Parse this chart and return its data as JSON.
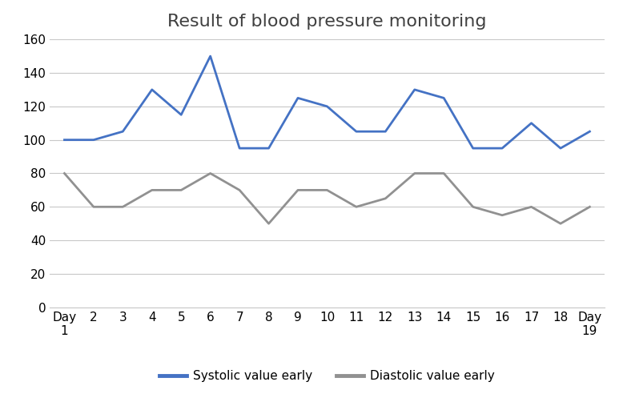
{
  "title": "Result of blood pressure monitoring",
  "x_labels": [
    "Day\n1",
    "2",
    "3",
    "4",
    "5",
    "6",
    "7",
    "8",
    "9",
    "10",
    "11",
    "12",
    "13",
    "14",
    "15",
    "16",
    "17",
    "18",
    "Day\n19"
  ],
  "x_positions": [
    1,
    2,
    3,
    4,
    5,
    6,
    7,
    8,
    9,
    10,
    11,
    12,
    13,
    14,
    15,
    16,
    17,
    18,
    19
  ],
  "systolic": [
    100,
    100,
    105,
    130,
    115,
    150,
    95,
    95,
    125,
    120,
    105,
    105,
    130,
    125,
    95,
    95,
    110,
    95,
    105
  ],
  "diastolic": [
    80,
    60,
    60,
    70,
    70,
    80,
    70,
    50,
    70,
    70,
    60,
    65,
    80,
    80,
    60,
    55,
    60,
    50,
    60
  ],
  "systolic_color": "#4472C4",
  "diastolic_color": "#919191",
  "background_color": "#ffffff",
  "grid_color": "#c8c8c8",
  "ylim": [
    0,
    160
  ],
  "yticks": [
    0,
    20,
    40,
    60,
    80,
    100,
    120,
    140,
    160
  ],
  "legend_systolic": "Systolic value early",
  "legend_diastolic": "Diastolic value early",
  "title_fontsize": 16,
  "tick_fontsize": 11,
  "legend_fontsize": 11,
  "line_width": 2.0
}
